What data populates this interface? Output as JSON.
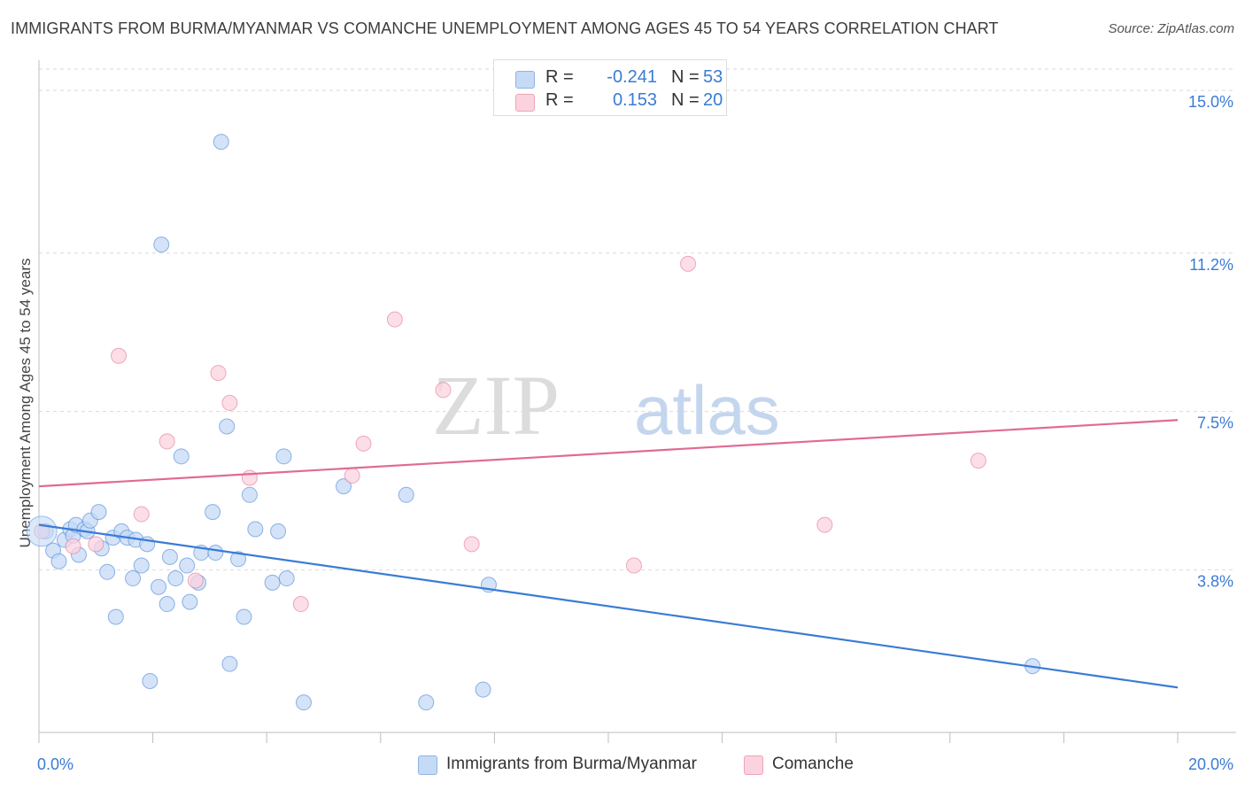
{
  "title": "IMMIGRANTS FROM BURMA/MYANMAR VS COMANCHE UNEMPLOYMENT AMONG AGES 45 TO 54 YEARS CORRELATION CHART",
  "source": "Source: ZipAtlas.com",
  "watermark": {
    "part1": "ZIP",
    "part2": "atlas"
  },
  "legend": {
    "r_label": "R =",
    "n_label": "N =",
    "rows": [
      {
        "r": "-0.241",
        "n": "53",
        "color": "#a9c8f0"
      },
      {
        "r": "0.153",
        "n": "20",
        "color": "#f7b9cb"
      }
    ]
  },
  "chart_data": {
    "type": "scatter",
    "title": "IMMIGRANTS FROM BURMA/MYANMAR VS COMANCHE UNEMPLOYMENT AMONG AGES 45 TO 54 YEARS CORRELATION CHART",
    "xlabel": "",
    "ylabel": "Unemployment Among Ages 45 to 54 years",
    "xlim": [
      0,
      20
    ],
    "ylim": [
      0,
      15.5
    ],
    "x_tick_labels": [
      "0.0%",
      "20.0%"
    ],
    "y_tick_labels": [
      "3.8%",
      "7.5%",
      "11.2%",
      "15.0%"
    ],
    "y_ticks": [
      3.8,
      7.5,
      11.2,
      15.0
    ],
    "grid": "horizontal dashed",
    "legend_position": "bottom-center",
    "series": [
      {
        "name": "Immigrants from Burma/Myanmar",
        "color": "#3a7bd5",
        "fill": "#c5daf5",
        "points": [
          [
            0.12,
            4.7
          ],
          [
            0.25,
            4.25
          ],
          [
            0.35,
            4.0
          ],
          [
            0.45,
            4.5
          ],
          [
            0.55,
            4.75
          ],
          [
            0.6,
            4.6
          ],
          [
            0.65,
            4.85
          ],
          [
            0.7,
            4.15
          ],
          [
            0.8,
            4.75
          ],
          [
            0.85,
            4.7
          ],
          [
            0.9,
            4.95
          ],
          [
            1.05,
            5.15
          ],
          [
            1.1,
            4.3
          ],
          [
            1.2,
            3.75
          ],
          [
            1.3,
            4.55
          ],
          [
            1.35,
            2.7
          ],
          [
            1.45,
            4.7
          ],
          [
            1.55,
            4.55
          ],
          [
            1.65,
            3.6
          ],
          [
            1.7,
            4.5
          ],
          [
            1.8,
            3.9
          ],
          [
            1.9,
            4.4
          ],
          [
            1.95,
            1.2
          ],
          [
            2.1,
            3.4
          ],
          [
            2.15,
            11.4
          ],
          [
            2.25,
            3.0
          ],
          [
            2.3,
            4.1
          ],
          [
            2.4,
            3.6
          ],
          [
            2.5,
            6.45
          ],
          [
            2.6,
            3.9
          ],
          [
            2.65,
            3.05
          ],
          [
            2.8,
            3.5
          ],
          [
            2.85,
            4.2
          ],
          [
            3.05,
            5.15
          ],
          [
            3.1,
            4.2
          ],
          [
            3.2,
            13.8
          ],
          [
            3.3,
            7.15
          ],
          [
            3.35,
            1.6
          ],
          [
            3.5,
            4.05
          ],
          [
            3.6,
            2.7
          ],
          [
            3.7,
            5.55
          ],
          [
            3.8,
            4.75
          ],
          [
            4.1,
            3.5
          ],
          [
            4.2,
            4.7
          ],
          [
            4.3,
            6.45
          ],
          [
            4.35,
            3.6
          ],
          [
            4.65,
            0.7
          ],
          [
            5.35,
            5.75
          ],
          [
            6.45,
            5.55
          ],
          [
            6.8,
            0.7
          ],
          [
            7.8,
            1.0
          ],
          [
            7.9,
            3.45
          ],
          [
            17.45,
            1.55
          ]
        ],
        "trend": [
          [
            0,
            4.85
          ],
          [
            20,
            1.05
          ]
        ]
      },
      {
        "name": "Comanche",
        "color": "#e06b92",
        "fill": "#fbd3df",
        "points": [
          [
            0.05,
            4.7
          ],
          [
            0.6,
            4.35
          ],
          [
            1.0,
            4.4
          ],
          [
            1.4,
            8.8
          ],
          [
            1.8,
            5.1
          ],
          [
            2.25,
            6.8
          ],
          [
            2.75,
            3.55
          ],
          [
            3.15,
            8.4
          ],
          [
            3.35,
            7.7
          ],
          [
            3.7,
            5.95
          ],
          [
            4.6,
            3.0
          ],
          [
            5.5,
            6.0
          ],
          [
            5.7,
            6.75
          ],
          [
            6.25,
            9.65
          ],
          [
            7.1,
            8.0
          ],
          [
            7.6,
            4.4
          ],
          [
            10.45,
            3.9
          ],
          [
            11.4,
            10.95
          ],
          [
            13.8,
            4.85
          ],
          [
            16.5,
            6.35
          ]
        ],
        "trend": [
          [
            0,
            5.75
          ],
          [
            20,
            7.3
          ]
        ]
      }
    ]
  }
}
